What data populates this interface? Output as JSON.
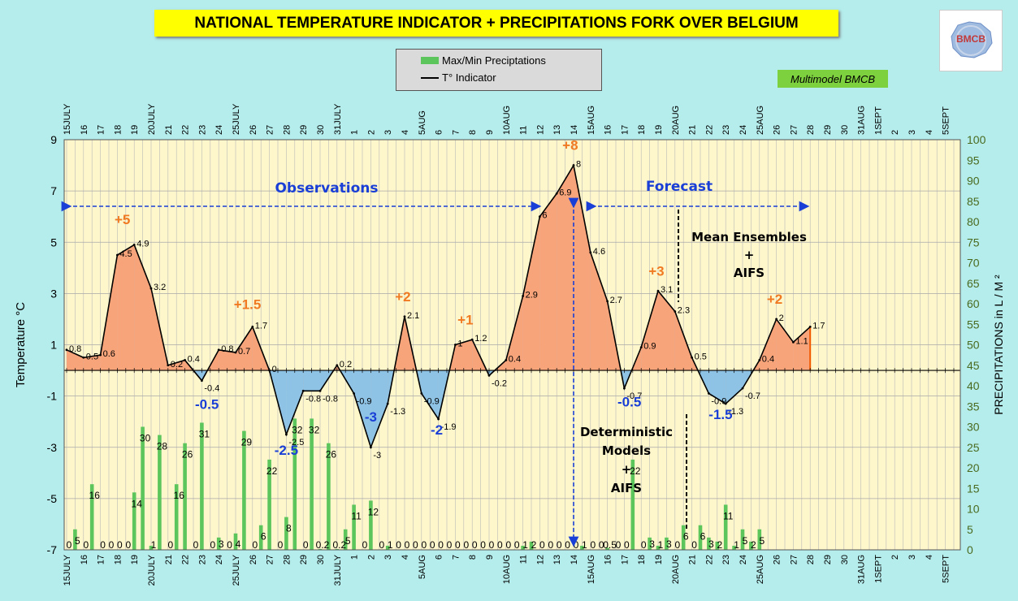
{
  "title": "NATIONAL TEMPERATURE INDICATOR + PRECIPITATIONS FORK OVER  BELGIUM",
  "legend": {
    "bars_label": "Max/Min Preciptations",
    "line_label": "T° Indicator"
  },
  "badge": "Multimodel BMCB",
  "logo_text": "BMCB",
  "colors": {
    "background": "#b5ecec",
    "plot_bg": "#fff7cc",
    "warm_fill": "#f7a47a",
    "cold_fill": "#8ec3e6",
    "bar": "#5cc55c",
    "anomaly_warm": "#f07a22",
    "anomaly_cold": "#1a3fd6",
    "annot_blue": "#1a3fd6"
  },
  "chart_data": {
    "type": "line+bar",
    "ylabel_left": "Temperature   °C",
    "ylabel_right": "PRECIPITATIONS in L / M ²",
    "ylim_left": [
      -7,
      9
    ],
    "yticks_left": [
      "9",
      "7",
      "5",
      "3",
      "1",
      "-1",
      "-3",
      "-5",
      "-7"
    ],
    "ylim_right": [
      0,
      100
    ],
    "yticks_right": [
      "0",
      "5",
      "10",
      "15",
      "20",
      "25",
      "30",
      "35",
      "40",
      "45",
      "50",
      "55",
      "60",
      "65",
      "70",
      "75",
      "80",
      "85",
      "90",
      "95",
      "100"
    ],
    "xlabels": [
      "15JULY",
      "16",
      "17",
      "18",
      "19",
      "20JULY",
      "21",
      "22",
      "23",
      "24",
      "25JULY",
      "26",
      "27",
      "28",
      "29",
      "30",
      "31JULY",
      "1",
      "2",
      "3",
      "4",
      "5AUG",
      "6",
      "7",
      "8",
      "9",
      "10AUG",
      "11",
      "12",
      "13",
      "14",
      "15AUG",
      "16",
      "17",
      "18",
      "19",
      "20AUG",
      "21",
      "22",
      "23",
      "24",
      "25AUG",
      "26",
      "27",
      "28",
      "29",
      "30",
      "31AUG",
      "1SEPT",
      "2",
      "3",
      "4",
      "5SEPT"
    ],
    "line_series": {
      "name": "T° Indicator",
      "points": [
        {
          "x": 0,
          "y": 0.8,
          "label": "0.8"
        },
        {
          "x": 1,
          "y": 0.5,
          "label": "0.5"
        },
        {
          "x": 2,
          "y": 0.6,
          "label": "0.6"
        },
        {
          "x": 3,
          "y": 4.5,
          "label": "4.5"
        },
        {
          "x": 4,
          "y": 4.9,
          "label": "4.9"
        },
        {
          "x": 5,
          "y": 3.2,
          "label": "3.2"
        },
        {
          "x": 6,
          "y": 0.2,
          "label": "0.2"
        },
        {
          "x": 7,
          "y": 0.4,
          "label": "0.4"
        },
        {
          "x": 8,
          "y": -0.4,
          "label": "-0.4"
        },
        {
          "x": 9,
          "y": 0.8,
          "label": "0.8"
        },
        {
          "x": 10,
          "y": 0.7,
          "label": "0.7"
        },
        {
          "x": 11,
          "y": 1.7,
          "label": "1.7"
        },
        {
          "x": 12,
          "y": 0,
          "label": "0"
        },
        {
          "x": 13,
          "y": -2.5,
          "label": "-2.5"
        },
        {
          "x": 14,
          "y": -0.8,
          "label": "-0.8"
        },
        {
          "x": 15,
          "y": -0.8,
          "label": "-0.8"
        },
        {
          "x": 16,
          "y": 0.2,
          "label": "0.2"
        },
        {
          "x": 17,
          "y": -0.9,
          "label": "-0.9"
        },
        {
          "x": 18,
          "y": -3,
          "label": "-3"
        },
        {
          "x": 19,
          "y": -1.3,
          "label": "-1.3"
        },
        {
          "x": 20,
          "y": 2.1,
          "label": "2.1"
        },
        {
          "x": 21,
          "y": -0.9,
          "label": "-0.9"
        },
        {
          "x": 22,
          "y": -1.9,
          "label": "-1.9"
        },
        {
          "x": 23,
          "y": 1,
          "label": "1"
        },
        {
          "x": 24,
          "y": 1.2,
          "label": "1.2"
        },
        {
          "x": 25,
          "y": -0.2,
          "label": "-0.2"
        },
        {
          "x": 26,
          "y": 0.4,
          "label": "0.4"
        },
        {
          "x": 27,
          "y": 2.9,
          "label": "2.9"
        },
        {
          "x": 28,
          "y": 6,
          "label": "6"
        },
        {
          "x": 29,
          "y": 6.9,
          "label": "6.9"
        },
        {
          "x": 30,
          "y": 8,
          "label": "8"
        },
        {
          "x": 31,
          "y": 4.6,
          "label": "4.6"
        },
        {
          "x": 32,
          "y": 2.7,
          "label": "2.7"
        },
        {
          "x": 33,
          "y": -0.7,
          "label": "-0.7"
        },
        {
          "x": 34,
          "y": 0.9,
          "label": "0.9"
        },
        {
          "x": 35,
          "y": 3.1,
          "label": "3.1"
        },
        {
          "x": 36,
          "y": 2.3,
          "label": "2.3"
        },
        {
          "x": 37,
          "y": 0.5,
          "label": "0.5"
        },
        {
          "x": 38,
          "y": -0.9,
          "label": "-0.9"
        },
        {
          "x": 39,
          "y": -1.3,
          "label": "-1.3"
        },
        {
          "x": 40,
          "y": -0.7,
          "label": "-0.7"
        },
        {
          "x": 41,
          "y": 0.4,
          "label": "0.4"
        },
        {
          "x": 42,
          "y": 2,
          "label": "2"
        },
        {
          "x": 43,
          "y": 1.1,
          "label": "1.1"
        },
        {
          "x": 44,
          "y": 1.7,
          "label": "1.7"
        }
      ]
    },
    "bar_series": {
      "name": "Max/Min Preciptations",
      "values": [
        0,
        5,
        0,
        16,
        0,
        0,
        0,
        0,
        14,
        30,
        1,
        28,
        0,
        16,
        26,
        0,
        31,
        0,
        3,
        0,
        4,
        29,
        0,
        6,
        22,
        0,
        8,
        32,
        0,
        32,
        0.2,
        26,
        0.2,
        5,
        11,
        0,
        12,
        0,
        1,
        0,
        0,
        0,
        0,
        0,
        0,
        0,
        0,
        0,
        0,
        0,
        0,
        0,
        0,
        0,
        1,
        2,
        0,
        0,
        0,
        0,
        0,
        1,
        0,
        0,
        0.5,
        0,
        0,
        22,
        0,
        3,
        1,
        3,
        0,
        6,
        0,
        6,
        3,
        2,
        11,
        1,
        5,
        2,
        5
      ],
      "labels": [
        "0",
        "5",
        "0",
        "16",
        "0",
        "0",
        "0",
        "0",
        "14",
        "30",
        "1",
        "28",
        "0",
        "16",
        "26",
        "0",
        "31",
        "0",
        "3",
        "0",
        "4",
        "29",
        "0",
        "6",
        "22",
        "0",
        "8",
        "32",
        "0",
        "32",
        "0.2",
        "26",
        "0.2",
        "5",
        "11",
        "0",
        "12",
        "0",
        "1",
        "0",
        "0",
        "0",
        "0",
        "0",
        "0",
        "0",
        "0",
        "0",
        "0",
        "0",
        "0",
        "0",
        "0",
        "0",
        "1",
        "2",
        "0",
        "0",
        "0",
        "0",
        "0",
        "1",
        "0",
        "0",
        "0.5",
        "0",
        "0",
        "22",
        "0",
        "3",
        "1",
        "3",
        "0",
        "6",
        "0",
        "6",
        "3",
        "2",
        "11",
        "1",
        "5",
        "2",
        "5"
      ]
    },
    "anomalies": [
      {
        "text": "+5",
        "x": 3.3,
        "y": 5.7,
        "kind": "warm"
      },
      {
        "text": "+1.5",
        "x": 10.7,
        "y": 2.4,
        "kind": "warm"
      },
      {
        "text": "+2",
        "x": 19.9,
        "y": 2.7,
        "kind": "warm"
      },
      {
        "text": "+1",
        "x": 23.6,
        "y": 1.8,
        "kind": "warm"
      },
      {
        "text": "+8",
        "x": 29.8,
        "y": 8.6,
        "kind": "warm"
      },
      {
        "text": "+3",
        "x": 34.9,
        "y": 3.7,
        "kind": "warm"
      },
      {
        "text": "+2",
        "x": 41.9,
        "y": 2.6,
        "kind": "warm"
      },
      {
        "text": "-0.5",
        "x": 8.3,
        "y": -1.5,
        "kind": "cold"
      },
      {
        "text": "-2.5",
        "x": 13.0,
        "y": -3.3,
        "kind": "cold"
      },
      {
        "text": "-3",
        "x": 18.0,
        "y": -2.0,
        "kind": "cold"
      },
      {
        "text": "-2",
        "x": 21.9,
        "y": -2.5,
        "kind": "cold"
      },
      {
        "text": "-0.5",
        "x": 33.3,
        "y": -1.4,
        "kind": "cold"
      },
      {
        "text": "-1.5",
        "x": 38.7,
        "y": -1.9,
        "kind": "cold"
      }
    ],
    "annotations": {
      "observations": "Observations",
      "forecast": "Forecast",
      "mean_ensembles": [
        "Mean Ensembles",
        "+",
        "AIFS"
      ],
      "deterministic": [
        "Deterministic",
        "Models",
        "+",
        "AIFS"
      ]
    }
  }
}
